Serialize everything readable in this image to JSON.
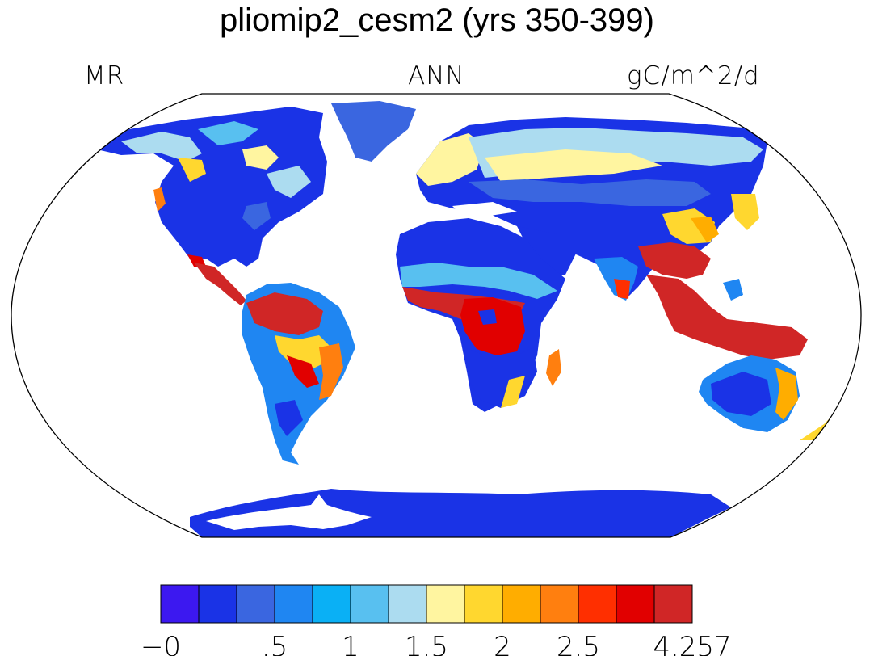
{
  "title": "pliomip2_cesm2 (yrs 350-399)",
  "left_label": "MR",
  "center_label": "ANN",
  "right_label": "gC/m^2/d",
  "colorbar": {
    "colors": [
      "#3c18f0",
      "#1a33e6",
      "#3a66e0",
      "#1f86f2",
      "#0ab0f5",
      "#58c0f0",
      "#acdcf0",
      "#fff5a0",
      "#ffd72f",
      "#ffad00",
      "#ff7f0f",
      "#ff2f00",
      "#e10000",
      "#d02626"
    ],
    "tick_labels": [
      "−0",
      ".5",
      "1",
      "1.5",
      "2",
      "2.5",
      "4.257"
    ],
    "tick_boundary_index": [
      0,
      3,
      5,
      7,
      9,
      11,
      14
    ]
  }
}
